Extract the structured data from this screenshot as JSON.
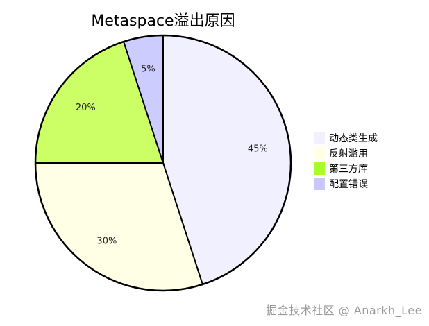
{
  "chart_data": {
    "type": "pie",
    "title": "Metaspace溢出原因",
    "categories": [
      "动态类生成",
      "反射滥用",
      "第三方库",
      "配置错误"
    ],
    "values": [
      45,
      30,
      20,
      5
    ],
    "labels": [
      "45%",
      "30%",
      "20%",
      "5%"
    ],
    "colors": [
      "#f0f0ff",
      "#ffffe6",
      "#ccff66",
      "#ccccff"
    ],
    "legend_swatch_colors": [
      "#f0f0ff",
      "#ffffe6",
      "#aaff22",
      "#c8c8ff"
    ],
    "legend_position": "right",
    "start_angle": "top, clockwise"
  },
  "watermark": "掘金技术社区 @ Anarkh_Lee"
}
